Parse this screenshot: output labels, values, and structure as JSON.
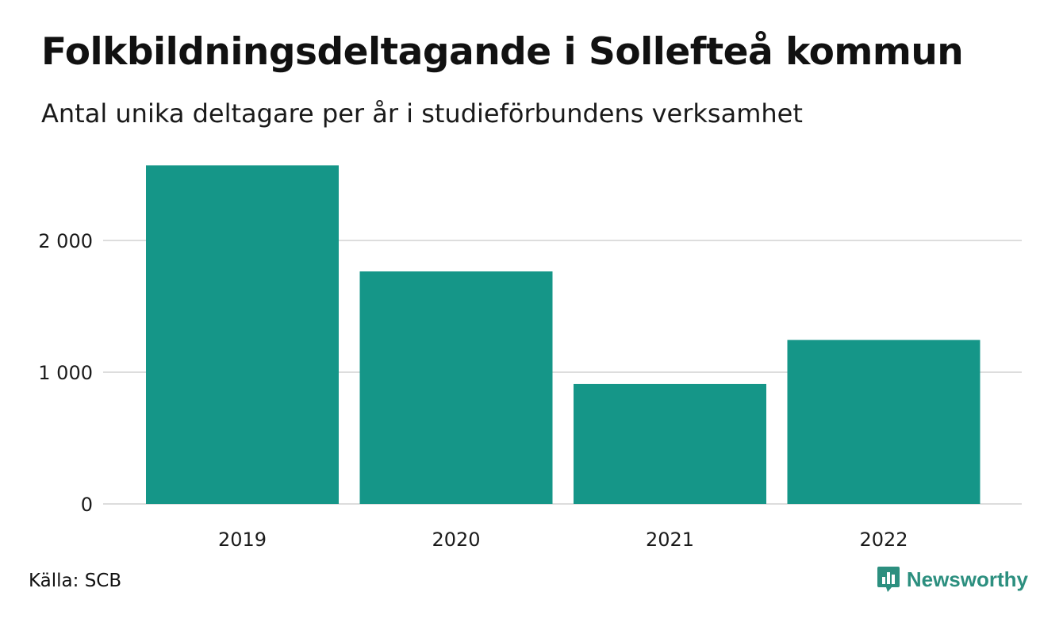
{
  "title": "Folkbildningsdeltagande i Sollefteå kommun",
  "subtitle": "Antal unika deltagare per år i studieförbundens verksamhet",
  "source": "Källa: SCB",
  "brand": "Newsworthy",
  "colors": {
    "bar": "#159688",
    "grid": "#dddddd",
    "brand": "#2c8f7f"
  },
  "chart_data": {
    "type": "bar",
    "categories": [
      "2019",
      "2020",
      "2021",
      "2022"
    ],
    "values": [
      2570,
      1765,
      910,
      1245
    ],
    "ylim": [
      0,
      2600
    ],
    "yticks": [
      0,
      1000,
      2000
    ],
    "ytick_labels": [
      "0",
      "1 000",
      "2 000"
    ],
    "grid": true,
    "legend": "none"
  }
}
